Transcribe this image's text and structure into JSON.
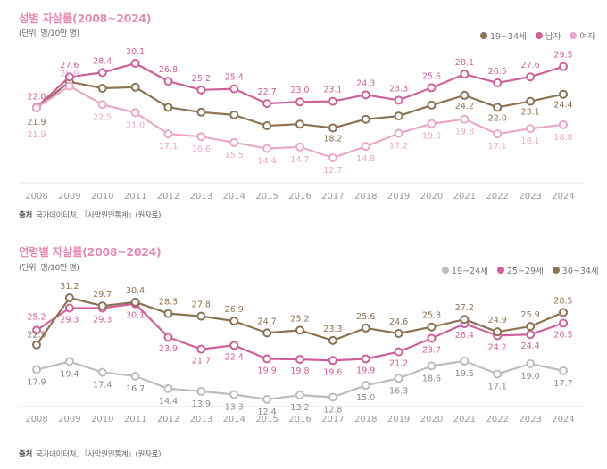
{
  "chart_data": [
    {
      "type": "line",
      "title": "성별 자살률(2008~2024)",
      "unit": "(단위: 명/10만 명)",
      "source_label": "출처",
      "source_text": "국가데이터처, 『사망원인통계』(원자료)",
      "xlabel": "",
      "ylabel": "",
      "x": [
        "2008",
        "2009",
        "2010",
        "2011",
        "2012",
        "2013",
        "2014",
        "2015",
        "2016",
        "2017",
        "2018",
        "2019",
        "2020",
        "2021",
        "2022",
        "2023",
        "2024"
      ],
      "ylim": [
        10,
        32
      ],
      "grid": false,
      "legend_position": "top-right",
      "series": [
        {
          "name": "19~34세",
          "color": "#8c7355",
          "values": [
            21.9,
            26.7,
            25.5,
            25.7,
            22.0,
            21.1,
            20.6,
            18.6,
            18.9,
            18.2,
            19.8,
            20.4,
            22.4,
            24.2,
            22.0,
            23.1,
            24.4
          ],
          "labels": [
            "21.9",
            "",
            "",
            "",
            "",
            "",
            "",
            "",
            "",
            "18.2",
            "",
            "",
            "",
            "24.2",
            "22.0",
            "23.1",
            "24.4"
          ],
          "label_pos": "below"
        },
        {
          "name": "남자",
          "color": "#d0609a",
          "values": [
            22.0,
            27.6,
            28.4,
            30.1,
            26.8,
            25.2,
            25.4,
            22.7,
            23.0,
            23.1,
            24.3,
            23.3,
            25.6,
            28.1,
            26.5,
            27.6,
            29.5
          ],
          "labels": [
            "22.0",
            "27.6",
            "28.4",
            "30.1",
            "26.8",
            "25.2",
            "25.4",
            "22.7",
            "23.0",
            "23.1",
            "24.3",
            "23.3",
            "25.6",
            "28.1",
            "26.5",
            "27.6",
            "29.5"
          ],
          "label_pos": "above"
        },
        {
          "name": "여자",
          "color": "#eca8c9",
          "values": [
            21.9,
            25.9,
            22.5,
            21.0,
            17.1,
            16.6,
            15.5,
            14.4,
            14.7,
            12.7,
            14.8,
            17.2,
            19.0,
            19.8,
            17.1,
            18.1,
            18.8
          ],
          "labels": [
            "21.9",
            "25.9",
            "22.5",
            "21.0",
            "17.1",
            "16.6",
            "15.5",
            "14.4",
            "14.7",
            "12.7",
            "14.8",
            "17.2",
            "19.0",
            "19.8",
            "17.1",
            "18.1",
            "18.8"
          ],
          "label_pos": "below"
        }
      ]
    },
    {
      "type": "line",
      "title": "연령별 자살률(2008~2024)",
      "unit": "(단위: 명/10만 명)",
      "source_label": "출처",
      "source_text": "국가데이터처, 『사망원인통계』(원자료)",
      "xlabel": "",
      "ylabel": "",
      "x": [
        "2008",
        "2009",
        "2010",
        "2011",
        "2012",
        "2013",
        "2014",
        "2015",
        "2016",
        "2017",
        "2018",
        "2019",
        "2020",
        "2021",
        "2022",
        "2023",
        "2024"
      ],
      "ylim": [
        10,
        33
      ],
      "grid": false,
      "legend_position": "top-right",
      "series": [
        {
          "name": "19~24세",
          "color": "#bdbdbd",
          "values": [
            17.9,
            19.4,
            17.4,
            16.7,
            14.4,
            13.9,
            13.3,
            12.4,
            13.2,
            12.8,
            15.0,
            16.3,
            18.6,
            19.5,
            17.1,
            19.0,
            17.7
          ],
          "labels": [
            "17.9",
            "19.4",
            "17.4",
            "16.7",
            "14.4",
            "13.9",
            "13.3",
            "12.4",
            "13.2",
            "12.8",
            "15.0",
            "16.3",
            "18.6",
            "19.5",
            "17.1",
            "19.0",
            "17.7"
          ],
          "label_pos": "below"
        },
        {
          "name": "25~29세",
          "color": "#d0609a",
          "values": [
            25.2,
            29.3,
            29.3,
            30.1,
            23.9,
            21.7,
            22.4,
            19.9,
            19.8,
            19.6,
            19.9,
            21.2,
            23.7,
            26.4,
            24.2,
            24.4,
            26.5
          ],
          "labels": [
            "25.2",
            "29.3",
            "29.3",
            "30.1",
            "23.9",
            "21.7",
            "22.4",
            "19.9",
            "19.8",
            "19.6",
            "19.9",
            "21.2",
            "23.7",
            "26.4",
            "24.2",
            "24.4",
            "26.5"
          ],
          "label_pos": "mixed"
        },
        {
          "name": "30~34세",
          "color": "#8c7355",
          "values": [
            22.5,
            31.2,
            29.7,
            30.4,
            28.3,
            27.8,
            26.9,
            24.7,
            25.2,
            23.3,
            25.6,
            24.6,
            25.8,
            27.2,
            24.9,
            25.9,
            28.5
          ],
          "labels": [
            "22.5",
            "31.2",
            "29.7",
            "30.4",
            "28.3",
            "27.8",
            "26.9",
            "24.7",
            "25.2",
            "23.3",
            "25.6",
            "24.6",
            "25.8",
            "27.2",
            "24.9",
            "25.9",
            "28.5"
          ],
          "label_pos": "above"
        }
      ]
    }
  ]
}
